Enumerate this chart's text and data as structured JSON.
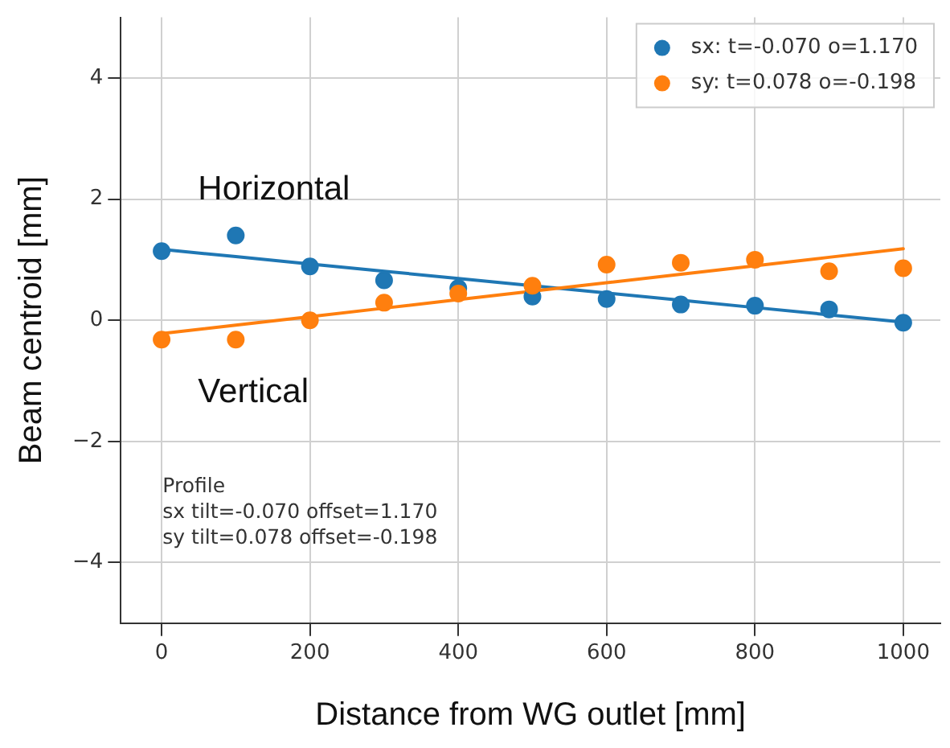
{
  "chart_data": {
    "type": "scatter",
    "xlabel": "Distance from WG outlet [mm]",
    "ylabel": "Beam centroid [mm]",
    "x": [
      0,
      100,
      200,
      300,
      400,
      500,
      600,
      700,
      800,
      900,
      1000
    ],
    "series": [
      {
        "name": "sx: t=-0.070 o=1.170",
        "color": "#1f77b4",
        "marker": "circle",
        "values": [
          1.14,
          1.4,
          0.89,
          0.66,
          0.53,
          0.39,
          0.35,
          0.26,
          0.24,
          0.18,
          -0.04
        ]
      },
      {
        "name": "sy: t=0.078 o=-0.198",
        "color": "#ff7f0e",
        "marker": "circle",
        "values": [
          -0.32,
          -0.32,
          0,
          0.29,
          0.44,
          0.57,
          0.92,
          0.95,
          1.0,
          0.81,
          0.86
        ]
      },
      {
        "type": "line",
        "color": "#1f77b4",
        "marker": "none",
        "values": [
          1.17,
          1.05,
          0.93,
          0.81,
          0.69,
          0.57,
          0.45,
          0.33,
          0.21,
          0.09,
          -0.03
        ]
      },
      {
        "type": "line",
        "color": "#ff7f0e",
        "marker": "none",
        "values": [
          -0.22,
          -0.08,
          0.06,
          0.2,
          0.34,
          0.48,
          0.62,
          0.76,
          0.9,
          1.04,
          1.18
        ]
      }
    ],
    "annotations": [
      "Horizontal",
      "Vertical",
      "Profile\nsx tilt=-0.070 offset=1.170\nsy tilt=0.078 offset=-0.198"
    ],
    "xlim": [
      -55,
      1050
    ],
    "ylim": [
      -5,
      5
    ],
    "xticks": [
      0,
      200,
      400,
      600,
      800,
      1000
    ],
    "yticks": [
      -4,
      -2,
      0,
      2,
      4
    ],
    "grid": true,
    "legend": "top right"
  }
}
